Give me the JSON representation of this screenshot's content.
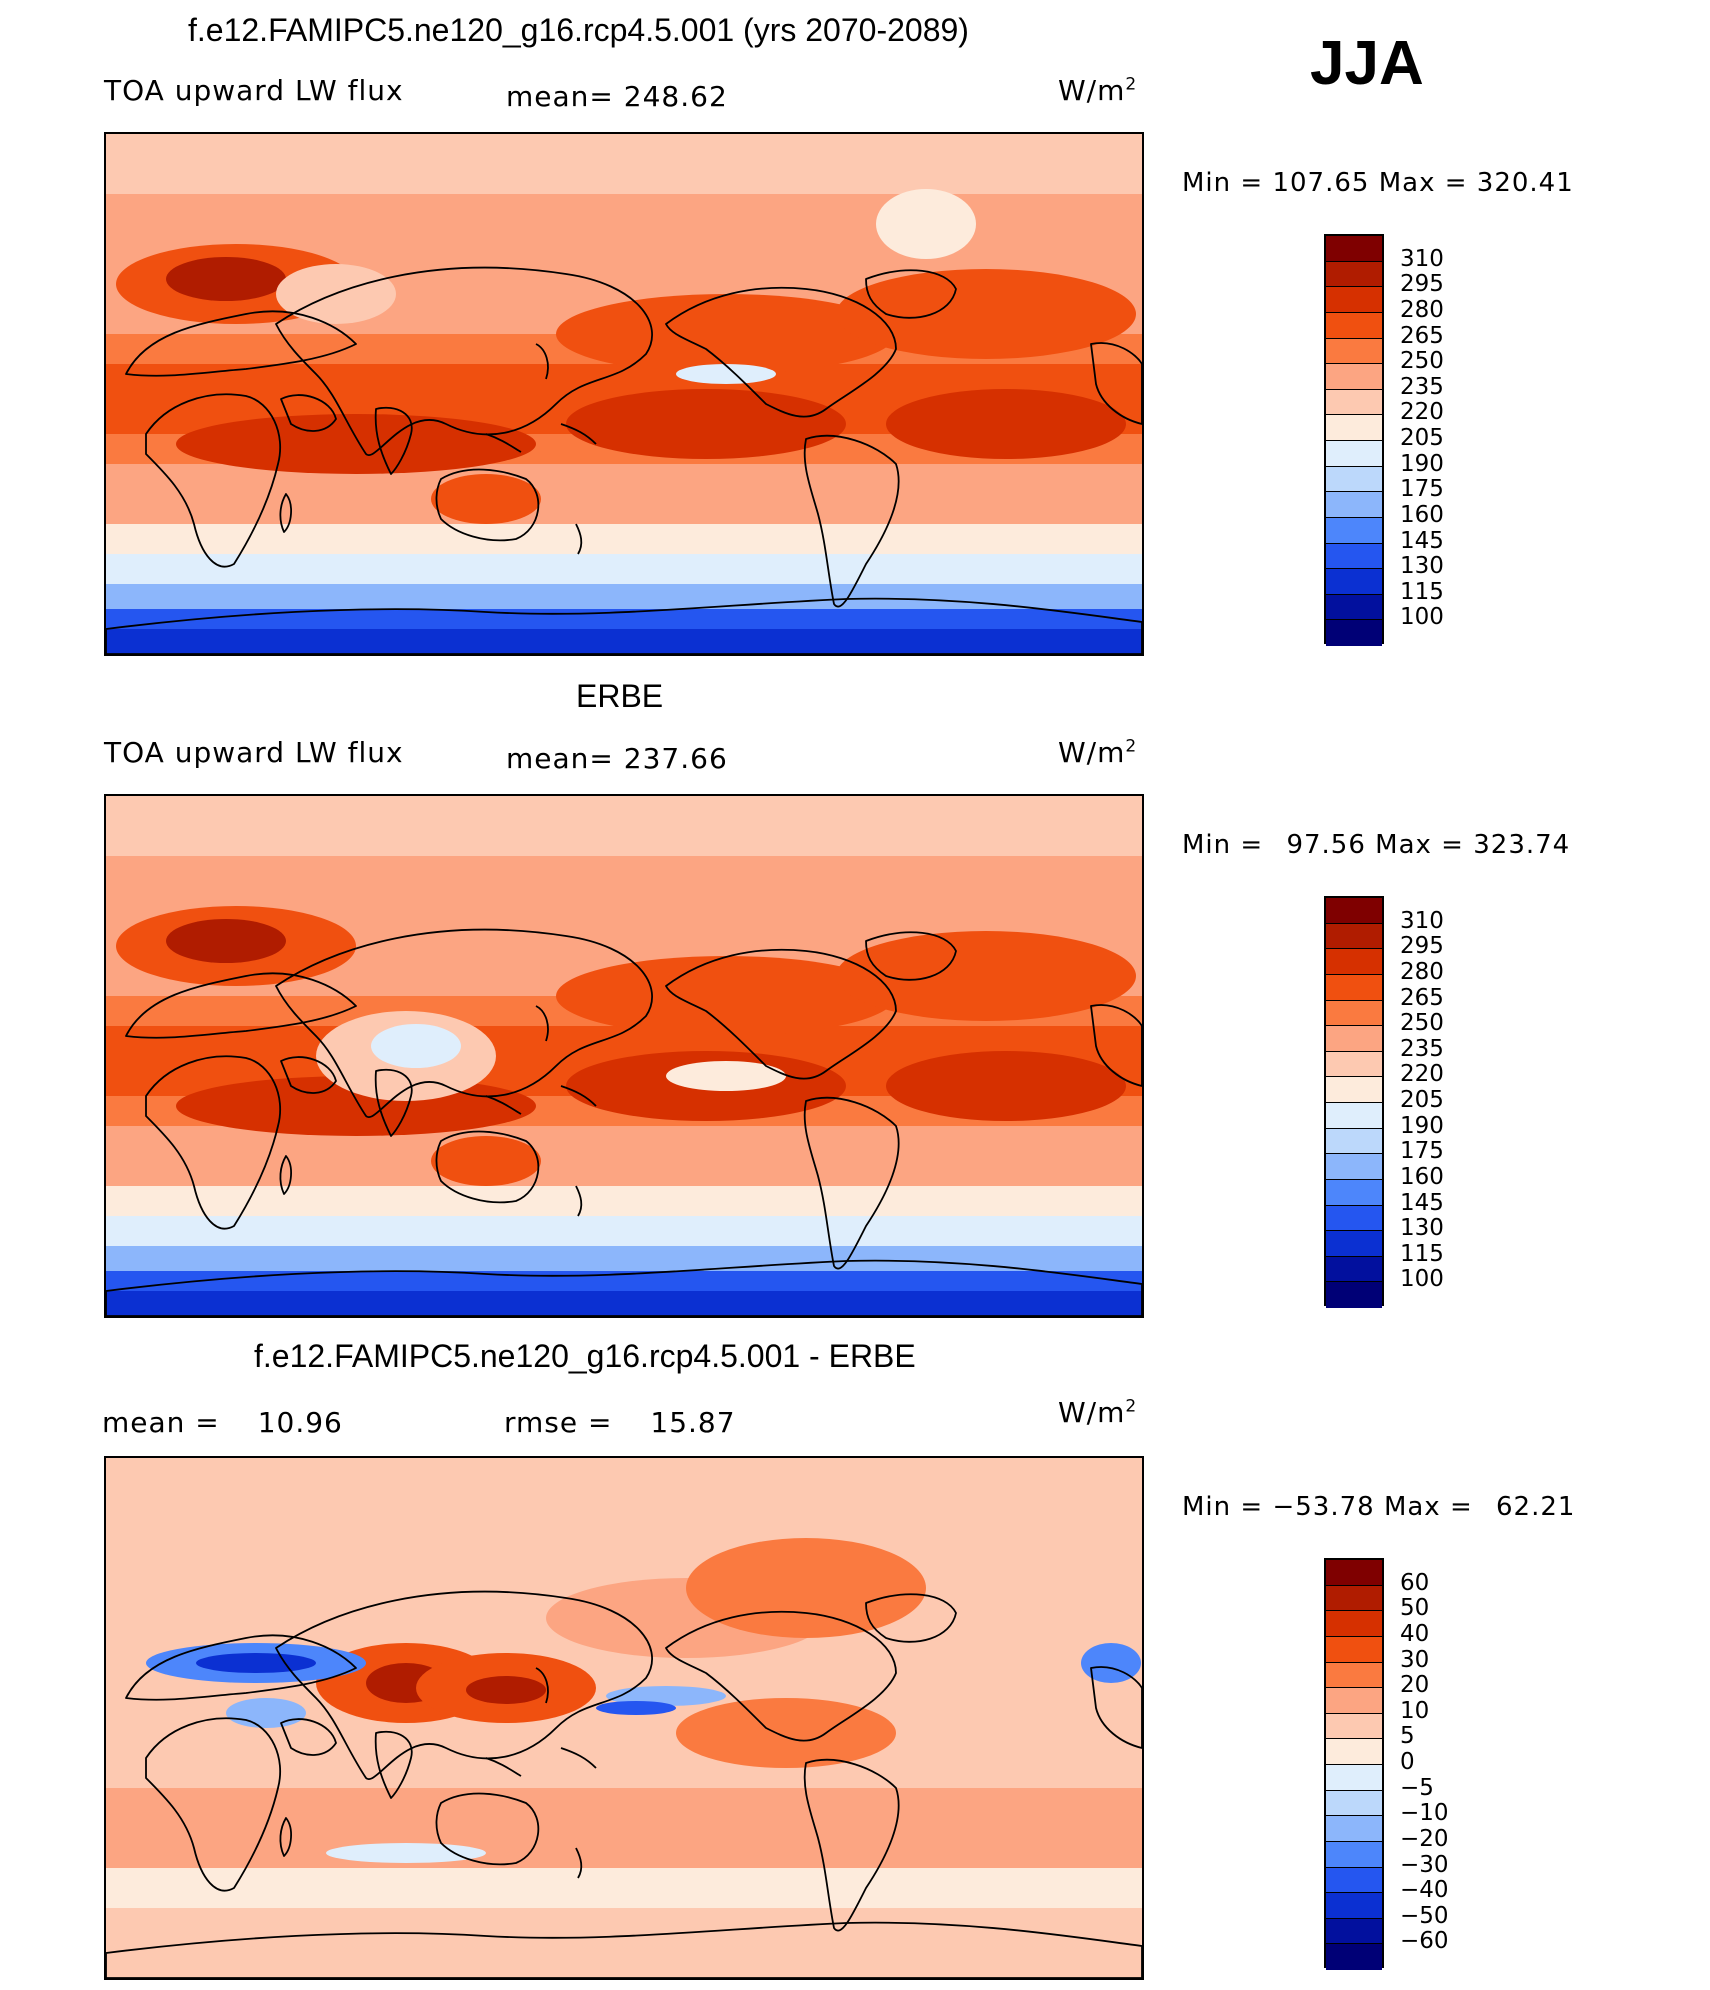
{
  "season": "JJA",
  "units": "W/m",
  "units_sup": "2",
  "panel1": {
    "title": "f.e12.FAMIPC5.ne120_g16.rcp4.5.001 (yrs 2070-2089)",
    "left_label": "TOA upward LW flux",
    "mean_label": "mean=",
    "mean_value": "248.62",
    "min_label": "Min =",
    "min_value": "107.65",
    "max_label": "Max =",
    "max_value": "320.41",
    "levels": [
      "310",
      "295",
      "280",
      "265",
      "250",
      "235",
      "220",
      "205",
      "190",
      "175",
      "160",
      "145",
      "130",
      "115",
      "100"
    ]
  },
  "panel2": {
    "title": "ERBE",
    "left_label": "TOA upward LW flux",
    "mean_label": "mean=",
    "mean_value": "237.66",
    "min_label": "Min =",
    "min_value": "97.56",
    "max_label": "Max =",
    "max_value": "323.74",
    "levels": [
      "310",
      "295",
      "280",
      "265",
      "250",
      "235",
      "220",
      "205",
      "190",
      "175",
      "160",
      "145",
      "130",
      "115",
      "100"
    ]
  },
  "panel3": {
    "title": "f.e12.FAMIPC5.ne120_g16.rcp4.5.001 - ERBE",
    "mean_label": "mean =",
    "mean_value": "10.96",
    "rmse_label": "rmse =",
    "rmse_value": "15.87",
    "min_label": "Min =",
    "min_value": "−53.78",
    "max_label": "Max =",
    "max_value": "62.21",
    "levels": [
      "60",
      "50",
      "40",
      "30",
      "20",
      "10",
      "5",
      "0",
      "−5",
      "−10",
      "−20",
      "−30",
      "−40",
      "−50",
      "−60"
    ]
  },
  "colors": {
    "abs_scale": [
      "#7f0000",
      "#b01c00",
      "#d63000",
      "#f05010",
      "#fa7a40",
      "#fca582",
      "#fdc9b1",
      "#fdebdc",
      "#dfeefc",
      "#bcd8fb",
      "#8cb6fb",
      "#4d86fb",
      "#2556f0",
      "#0b30d2",
      "#02109e",
      "#000076"
    ],
    "diff_scale": [
      "#7f0000",
      "#b01c00",
      "#d63000",
      "#f05010",
      "#fa7a40",
      "#fca582",
      "#fdc9b1",
      "#fdebdc",
      "#dfeefc",
      "#bcd8fb",
      "#8cb6fb",
      "#4d86fb",
      "#2556f0",
      "#0b30d2",
      "#02109e",
      "#000076"
    ]
  }
}
